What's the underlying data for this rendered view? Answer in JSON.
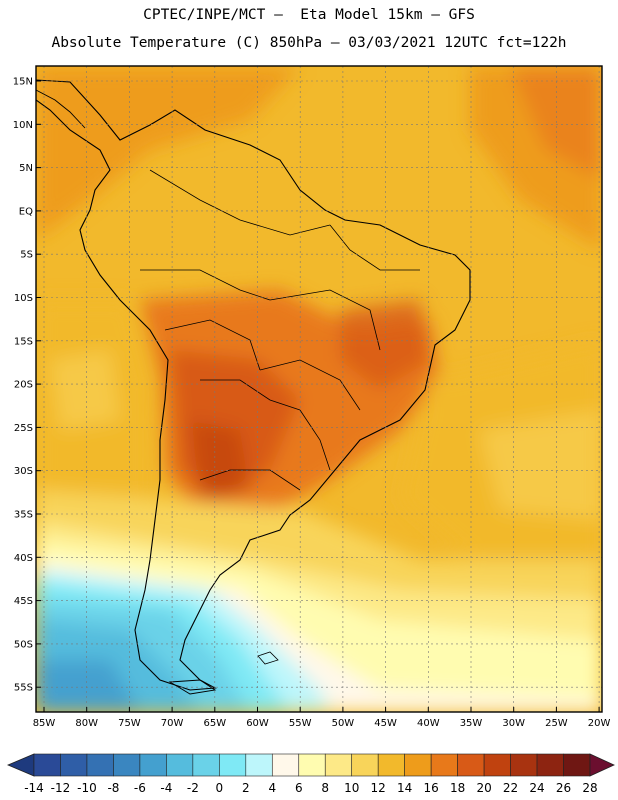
{
  "header": {
    "line1": "CPTEC/INPE/MCT –  Eta Model 15km – GFS",
    "line2": "Absolute Temperature (C) 850hPa – 03/03/2021 12UTC fct=122h"
  },
  "map": {
    "lat_labels": [
      "15N",
      "10N",
      "5N",
      "EQ",
      "5S",
      "10S",
      "15S",
      "20S",
      "25S",
      "30S",
      "35S",
      "40S",
      "45S",
      "50S",
      "55S"
    ],
    "lon_labels": [
      "85W",
      "80W",
      "75W",
      "70W",
      "65W",
      "60W",
      "55W",
      "50W",
      "45W",
      "40W",
      "35W",
      "30W",
      "25W",
      "20W"
    ]
  },
  "colorbar": {
    "labels": [
      "-14",
      "-12",
      "-10",
      "-8",
      "-6",
      "-4",
      "-2",
      "0",
      "2",
      "4",
      "6",
      "8",
      "10",
      "12",
      "14",
      "16",
      "18",
      "20",
      "22",
      "24",
      "26",
      "28"
    ],
    "colors": [
      "#2a4a97",
      "#2f5ea7",
      "#3471b3",
      "#3a86c0",
      "#44a0cf",
      "#55bcdd",
      "#6ad2e8",
      "#7fe9f5",
      "#bdf6fb",
      "#fff8ea",
      "#fffcb0",
      "#fde987",
      "#f8d45a",
      "#f2b92c",
      "#ee9c1b",
      "#e8791a",
      "#d85a17",
      "#c0420f",
      "#a83310",
      "#8d2411",
      "#6f1713"
    ],
    "under_color": "#1e3a7e",
    "over_color": "#6b0f2f"
  }
}
